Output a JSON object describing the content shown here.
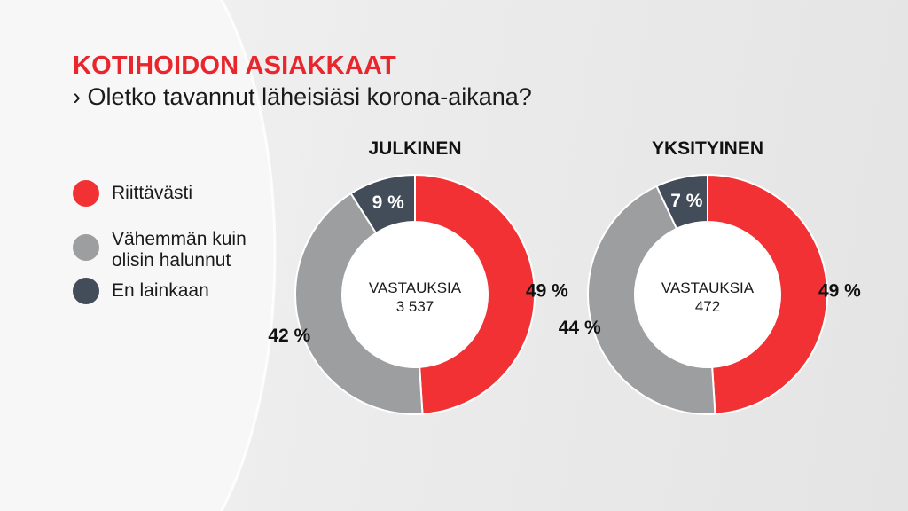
{
  "header": {
    "title": "KOTIHOIDON ASIAKKAAT",
    "question": "› Oletko tavannut läheisiäsi korona-aikana?"
  },
  "legend": {
    "items": [
      {
        "label": "Riittävästi",
        "color": "#f23134"
      },
      {
        "label": "Vähemmän kuin olisin halunnut",
        "color": "#9d9ea0"
      },
      {
        "label": "En lainkaan",
        "color": "#434c59"
      }
    ]
  },
  "charts": [
    {
      "title": "JULKINEN",
      "center_line1": "VASTAUKSIA",
      "center_line2": "3 537"
    },
    {
      "title": "YKSITYINEN",
      "center_line1": "VASTAUKSIA",
      "center_line2": "472"
    }
  ],
  "chart_data": [
    {
      "type": "pie",
      "title": "JULKINEN",
      "categories": [
        "Riittävästi",
        "Vähemmän kuin olisin halunnut",
        "En lainkaan"
      ],
      "values": [
        49,
        42,
        9
      ],
      "labels": [
        "49 %",
        "42 %",
        "9 %"
      ],
      "colors": [
        "#f23134",
        "#9d9ea0",
        "#434c59"
      ]
    },
    {
      "type": "pie",
      "title": "YKSITYINEN",
      "categories": [
        "Riittävästi",
        "Vähemmän kuin olisin halunnut",
        "En lainkaan"
      ],
      "values": [
        49,
        44,
        7
      ],
      "labels": [
        "49 %",
        "44 %",
        "7 %"
      ],
      "colors": [
        "#f23134",
        "#9d9ea0",
        "#434c59"
      ]
    }
  ]
}
